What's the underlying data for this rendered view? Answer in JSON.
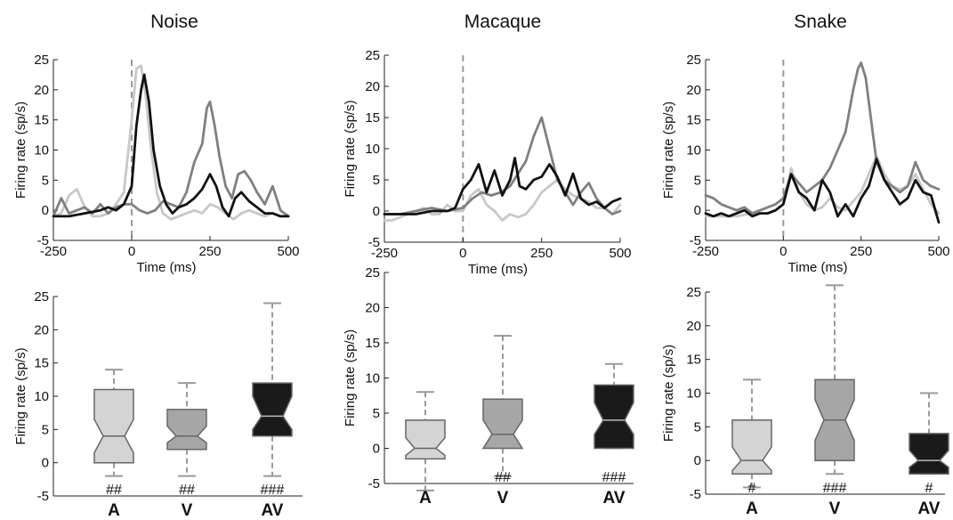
{
  "chart_data": [
    {
      "type": "line",
      "title": "Noise",
      "xlabel": "Time (ms)",
      "ylabel": "Firing rate (sp/s)",
      "xlim": [
        -250,
        500
      ],
      "ylim": [
        -5,
        25
      ],
      "xticks": [
        -250,
        0,
        250,
        500
      ],
      "yticks": [
        -5,
        0,
        5,
        10,
        15,
        20,
        25
      ],
      "stimulus_onset": 0,
      "series": [
        {
          "color": "#c8c8c8",
          "x": [
            -250,
            -225,
            -200,
            -175,
            -150,
            -125,
            -100,
            -75,
            -50,
            -25,
            0,
            15,
            30,
            45,
            60,
            80,
            100,
            125,
            150,
            175,
            200,
            225,
            250,
            275,
            300,
            325,
            350,
            375,
            400,
            425,
            450,
            475,
            500
          ],
          "y": [
            -1,
            -0.5,
            2.5,
            3.5,
            0.5,
            -1,
            -1,
            -0.5,
            1,
            3,
            15,
            23.5,
            24,
            19,
            11,
            3,
            -0.5,
            -1.5,
            -1,
            -0.5,
            0,
            -0.5,
            1,
            0.5,
            -0.5,
            -1.5,
            -0.5,
            0,
            -0.5,
            -1,
            -0.5,
            -1,
            -1
          ]
        },
        {
          "color": "#808080",
          "x": [
            -250,
            -225,
            -200,
            -175,
            -150,
            -125,
            -100,
            -75,
            -50,
            -25,
            0,
            25,
            50,
            75,
            100,
            125,
            150,
            175,
            200,
            225,
            240,
            250,
            265,
            280,
            300,
            320,
            340,
            360,
            380,
            400,
            425,
            450,
            475,
            500
          ],
          "y": [
            -1,
            2,
            -0.5,
            0,
            0.5,
            -0.5,
            1,
            -0.5,
            0.5,
            1,
            1,
            0,
            -0.5,
            0,
            1.5,
            1,
            0.5,
            3,
            8,
            11,
            17,
            18,
            14,
            9,
            4,
            2,
            6,
            6.5,
            5,
            3,
            1,
            4,
            0,
            -1
          ]
        },
        {
          "color": "#111111",
          "x": [
            -250,
            -200,
            -150,
            -100,
            -75,
            -50,
            -25,
            0,
            15,
            30,
            40,
            55,
            70,
            90,
            110,
            130,
            150,
            175,
            200,
            225,
            250,
            270,
            290,
            310,
            330,
            350,
            375,
            400,
            425,
            450,
            475,
            500
          ],
          "y": [
            -1,
            -1,
            -0.5,
            0,
            0.5,
            0,
            1,
            4,
            14,
            20,
            22.5,
            18,
            10,
            4,
            1,
            -0.5,
            0.5,
            1,
            2,
            3.5,
            6,
            4,
            0.5,
            -1,
            2,
            3,
            1.5,
            0.5,
            -0.5,
            -0.5,
            -1,
            -1
          ]
        }
      ]
    },
    {
      "type": "line",
      "title": "Macaque",
      "xlabel": "Time (ms)",
      "ylabel": "Firing rate (sp/s)",
      "xlim": [
        -250,
        500
      ],
      "ylim": [
        -5,
        25
      ],
      "xticks": [
        -250,
        0,
        250,
        500
      ],
      "yticks": [
        -5,
        0,
        5,
        10,
        15,
        20,
        25
      ],
      "stimulus_onset": 0,
      "series": [
        {
          "color": "#c8c8c8",
          "x": [
            -250,
            -225,
            -200,
            -175,
            -150,
            -125,
            -100,
            -75,
            -50,
            -25,
            0,
            25,
            50,
            75,
            100,
            125,
            150,
            175,
            200,
            225,
            250,
            275,
            300,
            325,
            350,
            375,
            400,
            425,
            450,
            475,
            500
          ],
          "y": [
            -1.5,
            -1.5,
            -1,
            -0.5,
            0,
            0.5,
            -0.5,
            -0.5,
            1,
            0,
            0,
            2.5,
            3.5,
            1,
            0,
            -1.5,
            -0.5,
            -1,
            -0.5,
            1,
            3,
            4,
            5,
            3.5,
            2.5,
            2,
            1.5,
            0.5,
            0.5,
            -0.5,
            1
          ]
        },
        {
          "color": "#808080",
          "x": [
            -250,
            -200,
            -150,
            -100,
            -50,
            0,
            30,
            60,
            90,
            120,
            150,
            175,
            200,
            225,
            250,
            265,
            280,
            300,
            325,
            350,
            375,
            400,
            425,
            450,
            475,
            500
          ],
          "y": [
            -0.5,
            -0.5,
            0,
            0.5,
            0,
            0.5,
            2,
            3,
            2.5,
            3,
            4,
            6,
            8,
            12,
            15,
            12,
            9,
            5,
            3,
            1,
            3,
            4.5,
            2,
            0.5,
            -0.5,
            0
          ]
        },
        {
          "color": "#111111",
          "x": [
            -250,
            -200,
            -150,
            -100,
            -50,
            -25,
            0,
            25,
            50,
            75,
            100,
            125,
            150,
            165,
            180,
            200,
            225,
            250,
            275,
            300,
            325,
            350,
            375,
            400,
            425,
            450,
            475,
            500
          ],
          "y": [
            -0.5,
            -0.5,
            -0.5,
            0,
            0,
            0.5,
            3.5,
            5,
            7.5,
            3,
            6.5,
            2.5,
            5,
            8.5,
            4,
            3.5,
            5,
            5.5,
            7.5,
            5.5,
            2.5,
            6,
            2,
            1,
            1.5,
            0.5,
            1.5,
            2
          ]
        }
      ]
    },
    {
      "type": "line",
      "title": "Snake",
      "xlabel": "Time (ms)",
      "ylabel": "Firing rate (sp/s)",
      "xlim": [
        -250,
        500
      ],
      "ylim": [
        -5,
        25
      ],
      "xticks": [
        -250,
        0,
        250,
        500
      ],
      "yticks": [
        -5,
        0,
        5,
        10,
        15,
        20,
        25
      ],
      "stimulus_onset": 0,
      "series": [
        {
          "color": "#c8c8c8",
          "x": [
            -250,
            -200,
            -150,
            -100,
            -50,
            -25,
            0,
            25,
            50,
            75,
            100,
            125,
            150,
            175,
            200,
            225,
            250,
            275,
            300,
            325,
            350,
            375,
            400,
            425,
            450,
            475,
            500
          ],
          "y": [
            -1,
            -1,
            -1,
            -0.5,
            -0.5,
            0,
            1,
            7,
            3,
            1,
            0,
            0.5,
            2,
            0.5,
            0,
            1.5,
            3,
            6,
            9,
            6,
            4,
            3.5,
            4,
            6,
            3.5,
            1,
            -0.5
          ]
        },
        {
          "color": "#808080",
          "x": [
            -250,
            -225,
            -200,
            -175,
            -150,
            -125,
            -100,
            -75,
            -50,
            -25,
            0,
            25,
            50,
            75,
            100,
            125,
            150,
            175,
            200,
            225,
            240,
            250,
            265,
            280,
            300,
            325,
            350,
            375,
            400,
            425,
            450,
            475,
            500
          ],
          "y": [
            2.5,
            2,
            1,
            0.5,
            0,
            0.5,
            -0.5,
            0,
            0.5,
            1,
            2,
            6,
            4.5,
            3,
            4,
            5,
            7,
            10,
            13,
            20,
            23.5,
            24.5,
            22,
            16,
            8,
            5,
            4,
            3,
            4,
            8,
            5,
            4,
            3.5
          ]
        },
        {
          "color": "#111111",
          "x": [
            -250,
            -225,
            -200,
            -175,
            -150,
            -125,
            -100,
            -75,
            -50,
            -25,
            0,
            25,
            50,
            75,
            100,
            125,
            150,
            175,
            200,
            225,
            250,
            275,
            300,
            325,
            350,
            375,
            400,
            425,
            450,
            475,
            500
          ],
          "y": [
            -0.5,
            -1,
            -0.5,
            -1,
            -0.5,
            0,
            -1,
            -0.5,
            -0.5,
            0,
            1,
            6,
            3,
            2,
            0,
            5,
            3,
            -1,
            1,
            -1,
            2,
            4,
            8.5,
            5,
            3,
            1,
            2,
            5,
            3,
            2.5,
            -2
          ]
        }
      ]
    },
    {
      "type": "box",
      "ylabel": "Firing rate (sp/s)",
      "ylim": [
        -5,
        25
      ],
      "yticks": [
        -5,
        0,
        5,
        10,
        15,
        20,
        25
      ],
      "categories": [
        "A",
        "V",
        "AV"
      ],
      "boxes": [
        {
          "min": -2,
          "q1": 0,
          "median": 4,
          "q3": 11,
          "max": 14,
          "notch_lo": 1.5,
          "notch_hi": 6.5,
          "color": "#d4d4d4",
          "mark": "##"
        },
        {
          "min": -2,
          "q1": 2,
          "median": 4,
          "q3": 8,
          "max": 12,
          "notch_lo": 3,
          "notch_hi": 5.5,
          "color": "#a6a6a6",
          "mark": "##"
        },
        {
          "min": -2,
          "q1": 4,
          "median": 7,
          "q3": 12,
          "max": 24,
          "notch_lo": 5,
          "notch_hi": 10,
          "color": "#1a1a1a",
          "mark": "###"
        }
      ]
    },
    {
      "type": "box",
      "ylabel": "Firing rate (sp/s)",
      "ylim": [
        -5,
        25
      ],
      "yticks": [
        -5,
        0,
        5,
        10,
        15,
        20,
        25
      ],
      "categories": [
        "A",
        "V",
        "AV"
      ],
      "boxes": [
        {
          "min": -6,
          "q1": -1.5,
          "median": 0,
          "q3": 4,
          "max": 8,
          "notch_lo": -1,
          "notch_hi": 1.5,
          "color": "#d4d4d4",
          "mark": ""
        },
        {
          "min": -4,
          "q1": 0,
          "median": 2,
          "q3": 7,
          "max": 16,
          "notch_lo": 0,
          "notch_hi": 4,
          "color": "#a6a6a6",
          "mark": "##"
        },
        {
          "min": 0,
          "q1": 0,
          "median": 4,
          "q3": 9,
          "max": 12,
          "notch_lo": 2,
          "notch_hi": 6.5,
          "color": "#1a1a1a",
          "mark": "###"
        }
      ]
    },
    {
      "type": "box",
      "ylabel": "Firing rate (sp/s)",
      "ylim": [
        -5,
        25
      ],
      "yticks": [
        -5,
        0,
        5,
        10,
        15,
        20,
        25
      ],
      "categories": [
        "A",
        "V",
        "AV"
      ],
      "boxes": [
        {
          "min": -4,
          "q1": -2,
          "median": 0,
          "q3": 6,
          "max": 12,
          "notch_lo": -1.5,
          "notch_hi": 2,
          "color": "#d4d4d4",
          "mark": "#"
        },
        {
          "min": -2,
          "q1": 0,
          "median": 6,
          "q3": 12,
          "max": 26,
          "notch_lo": 3,
          "notch_hi": 9,
          "color": "#a6a6a6",
          "mark": "###"
        },
        {
          "min": -2,
          "q1": -2,
          "median": 0,
          "q3": 4,
          "max": 10,
          "notch_lo": -1,
          "notch_hi": 1.5,
          "color": "#1a1a1a",
          "mark": "#"
        }
      ]
    }
  ]
}
